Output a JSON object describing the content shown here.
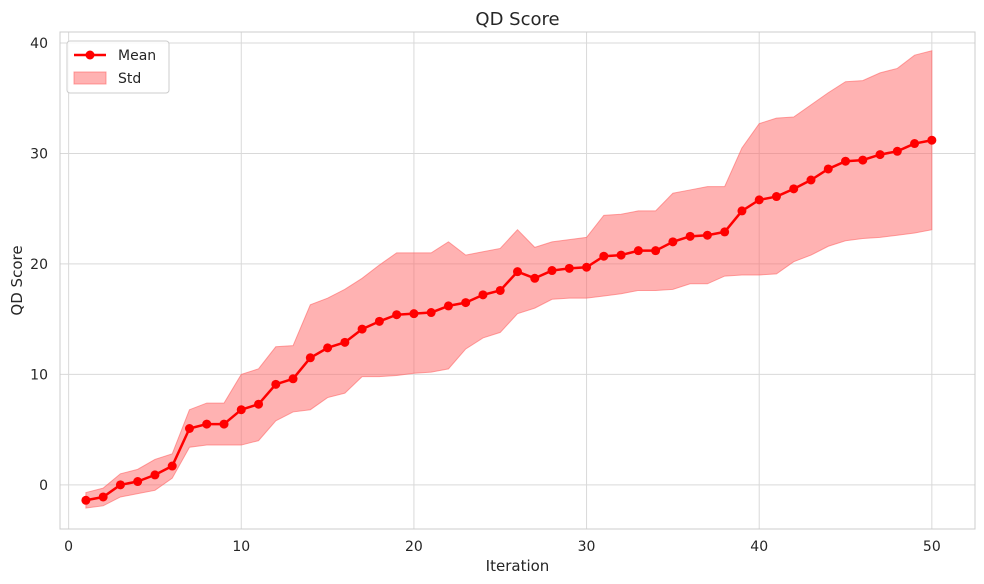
{
  "chart_data": {
    "type": "line",
    "title": "QD Score",
    "xlabel": "Iteration",
    "ylabel": "QD Score",
    "xlim": [
      -0.5,
      52.5
    ],
    "ylim": [
      -4,
      41
    ],
    "xticks": [
      0,
      10,
      20,
      30,
      40,
      50
    ],
    "yticks": [
      0,
      10,
      20,
      30,
      40
    ],
    "grid": true,
    "legend_position": "top-left",
    "x": [
      1,
      2,
      3,
      4,
      5,
      6,
      7,
      8,
      9,
      10,
      11,
      12,
      13,
      14,
      15,
      16,
      17,
      18,
      19,
      20,
      21,
      22,
      23,
      24,
      25,
      26,
      27,
      28,
      29,
      30,
      31,
      32,
      33,
      34,
      35,
      36,
      37,
      38,
      39,
      40,
      41,
      42,
      43,
      44,
      45,
      46,
      47,
      48,
      49,
      50
    ],
    "series": [
      {
        "name": "Mean",
        "kind": "line",
        "color": "#ff0000",
        "values": [
          -1.4,
          -1.1,
          0.0,
          0.3,
          0.9,
          1.7,
          5.1,
          5.5,
          5.5,
          6.8,
          7.3,
          9.1,
          9.6,
          11.5,
          12.4,
          12.9,
          14.1,
          14.8,
          15.4,
          15.5,
          15.6,
          16.2,
          16.5,
          17.2,
          17.6,
          19.3,
          18.7,
          19.4,
          19.6,
          19.7,
          20.7,
          20.8,
          21.2,
          21.2,
          22.0,
          22.5,
          22.6,
          22.9,
          24.8,
          25.8,
          26.1,
          26.8,
          27.6,
          28.6,
          29.3,
          29.4,
          29.9,
          30.2,
          30.9,
          31.2
        ]
      },
      {
        "name": "Std",
        "kind": "band",
        "color": "#ff6666",
        "lower": [
          -2.1,
          -1.9,
          -1.1,
          -0.8,
          -0.5,
          0.6,
          3.4,
          3.6,
          3.6,
          3.6,
          4.0,
          5.8,
          6.6,
          6.8,
          7.9,
          8.3,
          9.8,
          9.8,
          9.9,
          10.1,
          10.2,
          10.5,
          12.3,
          13.3,
          13.8,
          15.5,
          16.0,
          16.8,
          16.9,
          16.9,
          17.1,
          17.3,
          17.6,
          17.6,
          17.7,
          18.2,
          18.2,
          18.9,
          19.0,
          19.0,
          19.1,
          20.2,
          20.8,
          21.6,
          22.1,
          22.3,
          22.4,
          22.6,
          22.8,
          23.1
        ],
        "upper": [
          -0.7,
          -0.3,
          1.0,
          1.4,
          2.3,
          2.8,
          6.8,
          7.4,
          7.4,
          10.0,
          10.5,
          12.5,
          12.6,
          16.3,
          16.9,
          17.7,
          18.7,
          19.9,
          21.0,
          21.0,
          21.0,
          22.0,
          20.8,
          21.1,
          21.4,
          23.1,
          21.5,
          22.0,
          22.2,
          22.4,
          24.4,
          24.5,
          24.8,
          24.8,
          26.4,
          26.7,
          27.0,
          27.0,
          30.5,
          32.7,
          33.2,
          33.3,
          34.4,
          35.5,
          36.5,
          36.6,
          37.3,
          37.7,
          38.9,
          39.3
        ]
      }
    ]
  }
}
